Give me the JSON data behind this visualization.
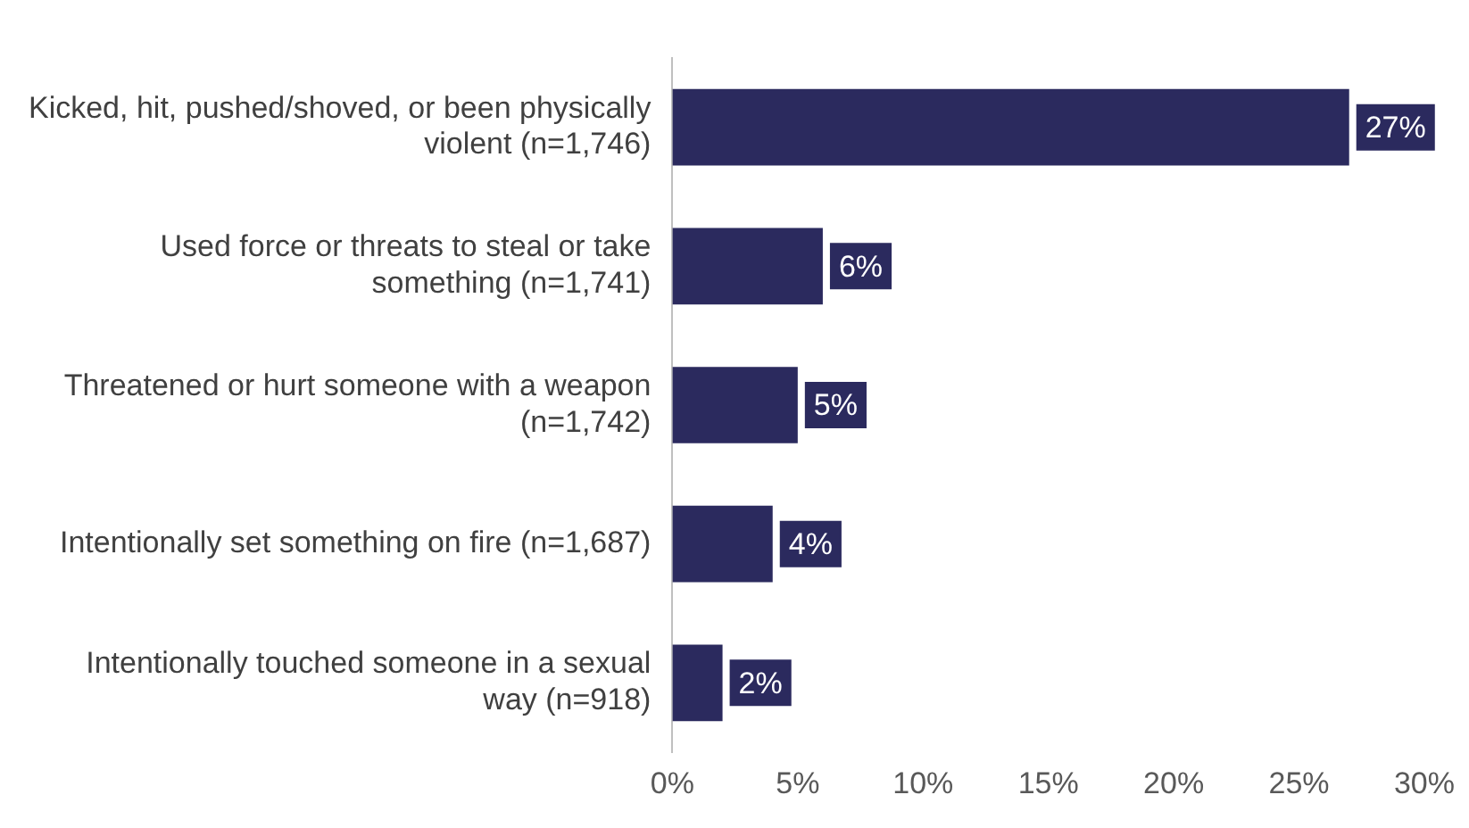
{
  "chart_data": {
    "type": "bar",
    "orientation": "horizontal",
    "categories": [
      "Kicked, hit, pushed/shoved, or been physically violent (n=1,746)",
      "Used force or threats to steal or take something (n=1,741)",
      "Threatened or hurt someone with a weapon (n=1,742)",
      "Intentionally set something on fire (n=1,687)",
      "Intentionally touched someone in a sexual way (n=918)"
    ],
    "values": [
      27,
      6,
      5,
      4,
      2
    ],
    "value_labels": [
      "27%",
      "6%",
      "5%",
      "4%",
      "2%"
    ],
    "color": "#2b2a5e",
    "xlim": [
      0,
      30
    ],
    "xticks": [
      {
        "value": 0,
        "label": "0%"
      },
      {
        "value": 5,
        "label": "5%"
      },
      {
        "value": 10,
        "label": "10%"
      },
      {
        "value": 15,
        "label": "15%"
      },
      {
        "value": 20,
        "label": "20%"
      },
      {
        "value": 25,
        "label": "25%"
      },
      {
        "value": 30,
        "label": "30%"
      }
    ],
    "grid": false,
    "legend": false
  }
}
